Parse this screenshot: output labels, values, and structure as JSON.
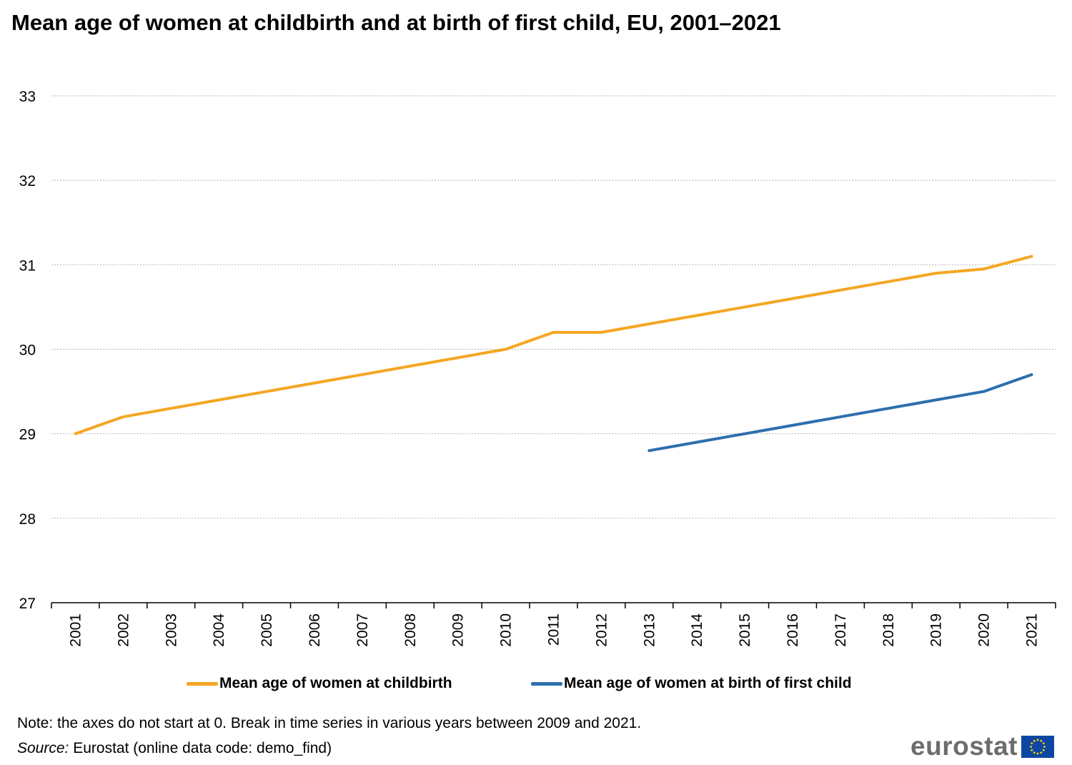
{
  "title": "Mean age of women at childbirth and at birth of first child, EU, 2001–2021",
  "chart_data": {
    "type": "line",
    "title": "Mean age of women at childbirth and at birth of first child, EU, 2001–2021",
    "xlabel": "",
    "ylabel": "",
    "x": [
      "2001",
      "2002",
      "2003",
      "2004",
      "2005",
      "2006",
      "2007",
      "2008",
      "2009",
      "2010",
      "2011",
      "2012",
      "2013",
      "2014",
      "2015",
      "2016",
      "2017",
      "2018",
      "2019",
      "2020",
      "2021"
    ],
    "ylim": [
      27,
      33
    ],
    "yticks": [
      "27",
      "28",
      "29",
      "30",
      "31",
      "32",
      "33"
    ],
    "grid": true,
    "legend_position": "bottom",
    "series": [
      {
        "name": "Mean age of women at childbirth",
        "color": "#f5a623",
        "values": [
          29.0,
          29.2,
          29.3,
          29.4,
          29.5,
          29.6,
          29.7,
          29.8,
          29.9,
          30.0,
          30.2,
          30.2,
          30.3,
          30.4,
          30.5,
          30.6,
          30.7,
          30.8,
          30.9,
          30.95,
          31.1
        ]
      },
      {
        "name": "Mean age of women at birth of first child",
        "color": "#2e6fad",
        "values": [
          null,
          null,
          null,
          null,
          null,
          null,
          null,
          null,
          null,
          null,
          null,
          null,
          28.8,
          28.9,
          29.0,
          29.1,
          29.2,
          29.3,
          29.4,
          29.5,
          29.7
        ]
      }
    ]
  },
  "footer": {
    "note": "Note: the axes do not start at 0. Break in time series in various years between 2009 and 2021.",
    "source_label": "Source:",
    "source_text": " Eurostat (online data code: demo_find)"
  },
  "logo": {
    "text": "eurostat",
    "flag_icon": "eu-flag-icon"
  }
}
